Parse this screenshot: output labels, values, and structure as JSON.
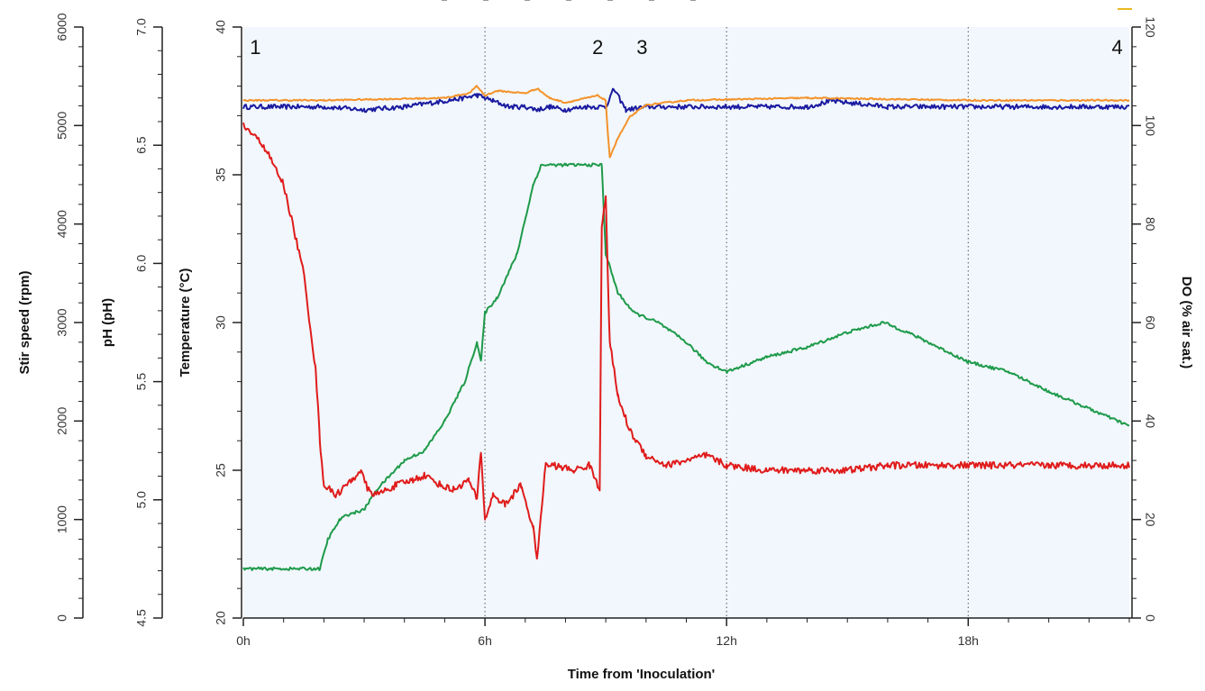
{
  "chart_data": {
    "type": "line",
    "x_axis": {
      "title": "Time from 'Inoculation'",
      "unit": "h",
      "range": [
        0,
        22
      ],
      "ticks": [
        0,
        6,
        12,
        18
      ],
      "tick_labels": [
        "0h",
        "6h",
        "12h",
        "18h"
      ],
      "gridlines": "dotted vertical at 6h, 12h, 18h"
    },
    "left_axes": [
      {
        "id": "stir",
        "title": "Stir speed (rpm)",
        "range": [
          0,
          6000
        ],
        "ticks": [
          0,
          1000,
          2000,
          3000,
          4000,
          5000,
          6000
        ],
        "tick_labels": [
          "0",
          "1000",
          "2000",
          "3000",
          "4000",
          "5000",
          "6000"
        ]
      },
      {
        "id": "ph",
        "title": "pH (pH)",
        "range": [
          4.5,
          7.0
        ],
        "ticks": [
          4.5,
          5.0,
          5.5,
          6.0,
          6.5,
          7.0
        ],
        "tick_labels": [
          "4.5",
          "5.0",
          "5.5",
          "6.0",
          "6.5",
          "7.0"
        ]
      },
      {
        "id": "temp",
        "title": "Temperature (°C)",
        "range": [
          20,
          40
        ],
        "ticks": [
          20,
          25,
          30,
          35,
          40
        ],
        "tick_labels": [
          "20",
          "25",
          "30",
          "35",
          "40"
        ]
      }
    ],
    "right_axis": {
      "id": "do",
      "title": "DO (% air sat.)",
      "range": [
        0,
        120
      ],
      "ticks": [
        0,
        20,
        40,
        60,
        80,
        100,
        120
      ],
      "tick_labels": [
        "0",
        "20",
        "40",
        "60",
        "80",
        "100",
        "120"
      ]
    },
    "event_markers": [
      {
        "label": "1",
        "x": 0.3
      },
      {
        "label": "2",
        "x": 8.8
      },
      {
        "label": "3",
        "x": 9.9
      },
      {
        "label": "4",
        "x": 21.7
      }
    ],
    "series": [
      {
        "name": "Temperature",
        "axis": "temp",
        "color": "#1a1aa0",
        "noise": 0.08,
        "x": [
          0,
          1,
          2,
          3,
          4,
          5,
          5.5,
          5.8,
          6.2,
          6.6,
          7,
          7.3,
          7.6,
          8,
          8.5,
          9.0,
          9.2,
          9.5,
          10,
          12,
          14,
          14.6,
          16,
          18,
          20,
          22
        ],
        "y": [
          37.3,
          37.3,
          37.3,
          37.2,
          37.3,
          37.5,
          37.6,
          37.7,
          37.5,
          37.3,
          37.3,
          37.2,
          37.3,
          37.2,
          37.3,
          37.3,
          37.9,
          37.2,
          37.3,
          37.3,
          37.3,
          37.5,
          37.3,
          37.3,
          37.3,
          37.3
        ]
      },
      {
        "name": "pH",
        "axis": "ph",
        "color": "#f4922a",
        "noise": 0.003,
        "x": [
          0,
          2,
          5,
          5.6,
          5.8,
          6,
          6.3,
          7,
          7.3,
          7.6,
          8,
          8.8,
          9,
          9.05,
          9.1,
          9.3,
          9.6,
          10,
          11,
          14,
          18,
          22
        ],
        "y": [
          6.69,
          6.69,
          6.7,
          6.72,
          6.75,
          6.71,
          6.73,
          6.72,
          6.74,
          6.7,
          6.68,
          6.71,
          6.69,
          6.55,
          6.45,
          6.53,
          6.62,
          6.67,
          6.69,
          6.7,
          6.69,
          6.69
        ]
      },
      {
        "name": "Stir speed",
        "axis": "stir",
        "color": "#1e9a4a",
        "noise": 15,
        "x": [
          0,
          1.9,
          2.1,
          2.4,
          2.6,
          3.0,
          3.3,
          4.0,
          4.5,
          5.0,
          5.5,
          5.8,
          5.9,
          6.0,
          6.3,
          6.8,
          7.2,
          7.4,
          7.6,
          8.0,
          8.9,
          9.0,
          9.3,
          9.7,
          10.3,
          11.0,
          11.5,
          12.0,
          13.0,
          14.0,
          15.0,
          15.9,
          16.5,
          18.0,
          19.0,
          20.0,
          22.0
        ],
        "y": [
          500,
          500,
          800,
          1000,
          1050,
          1100,
          1300,
          1600,
          1700,
          2000,
          2400,
          2800,
          2600,
          3100,
          3250,
          3700,
          4400,
          4600,
          4600,
          4600,
          4600,
          3700,
          3300,
          3100,
          3000,
          2800,
          2600,
          2500,
          2650,
          2750,
          2900,
          3000,
          2900,
          2600,
          2500,
          2300,
          1950
        ]
      },
      {
        "name": "DO",
        "axis": "do",
        "color": "#e01b1b",
        "noise": 0.7,
        "x": [
          0,
          0.5,
          1.0,
          1.5,
          1.8,
          1.9,
          2.0,
          2.3,
          2.7,
          2.9,
          3.1,
          3.3,
          3.8,
          4.2,
          4.5,
          4.9,
          5.2,
          5.6,
          5.8,
          5.9,
          6.0,
          6.2,
          6.5,
          6.9,
          7.2,
          7.3,
          7.5,
          7.7,
          8.2,
          8.6,
          8.8,
          8.85,
          8.9,
          9.0,
          9.05,
          9.1,
          9.3,
          9.6,
          10.0,
          10.5,
          11.0,
          11.5,
          12.0,
          13.0,
          14.0,
          15.0,
          16.0,
          18.0,
          20.0,
          22.0
        ],
        "y": [
          100,
          96,
          88,
          70,
          50,
          36,
          27,
          25,
          28,
          30,
          26,
          25,
          27,
          28,
          29,
          27,
          26,
          28,
          24,
          34,
          20,
          25,
          23,
          27,
          18,
          12,
          31,
          31,
          30,
          31,
          27,
          26,
          80,
          85,
          70,
          56,
          45,
          38,
          33,
          31,
          32,
          33,
          31,
          30,
          30,
          30,
          31,
          31,
          31,
          31
        ]
      }
    ]
  }
}
